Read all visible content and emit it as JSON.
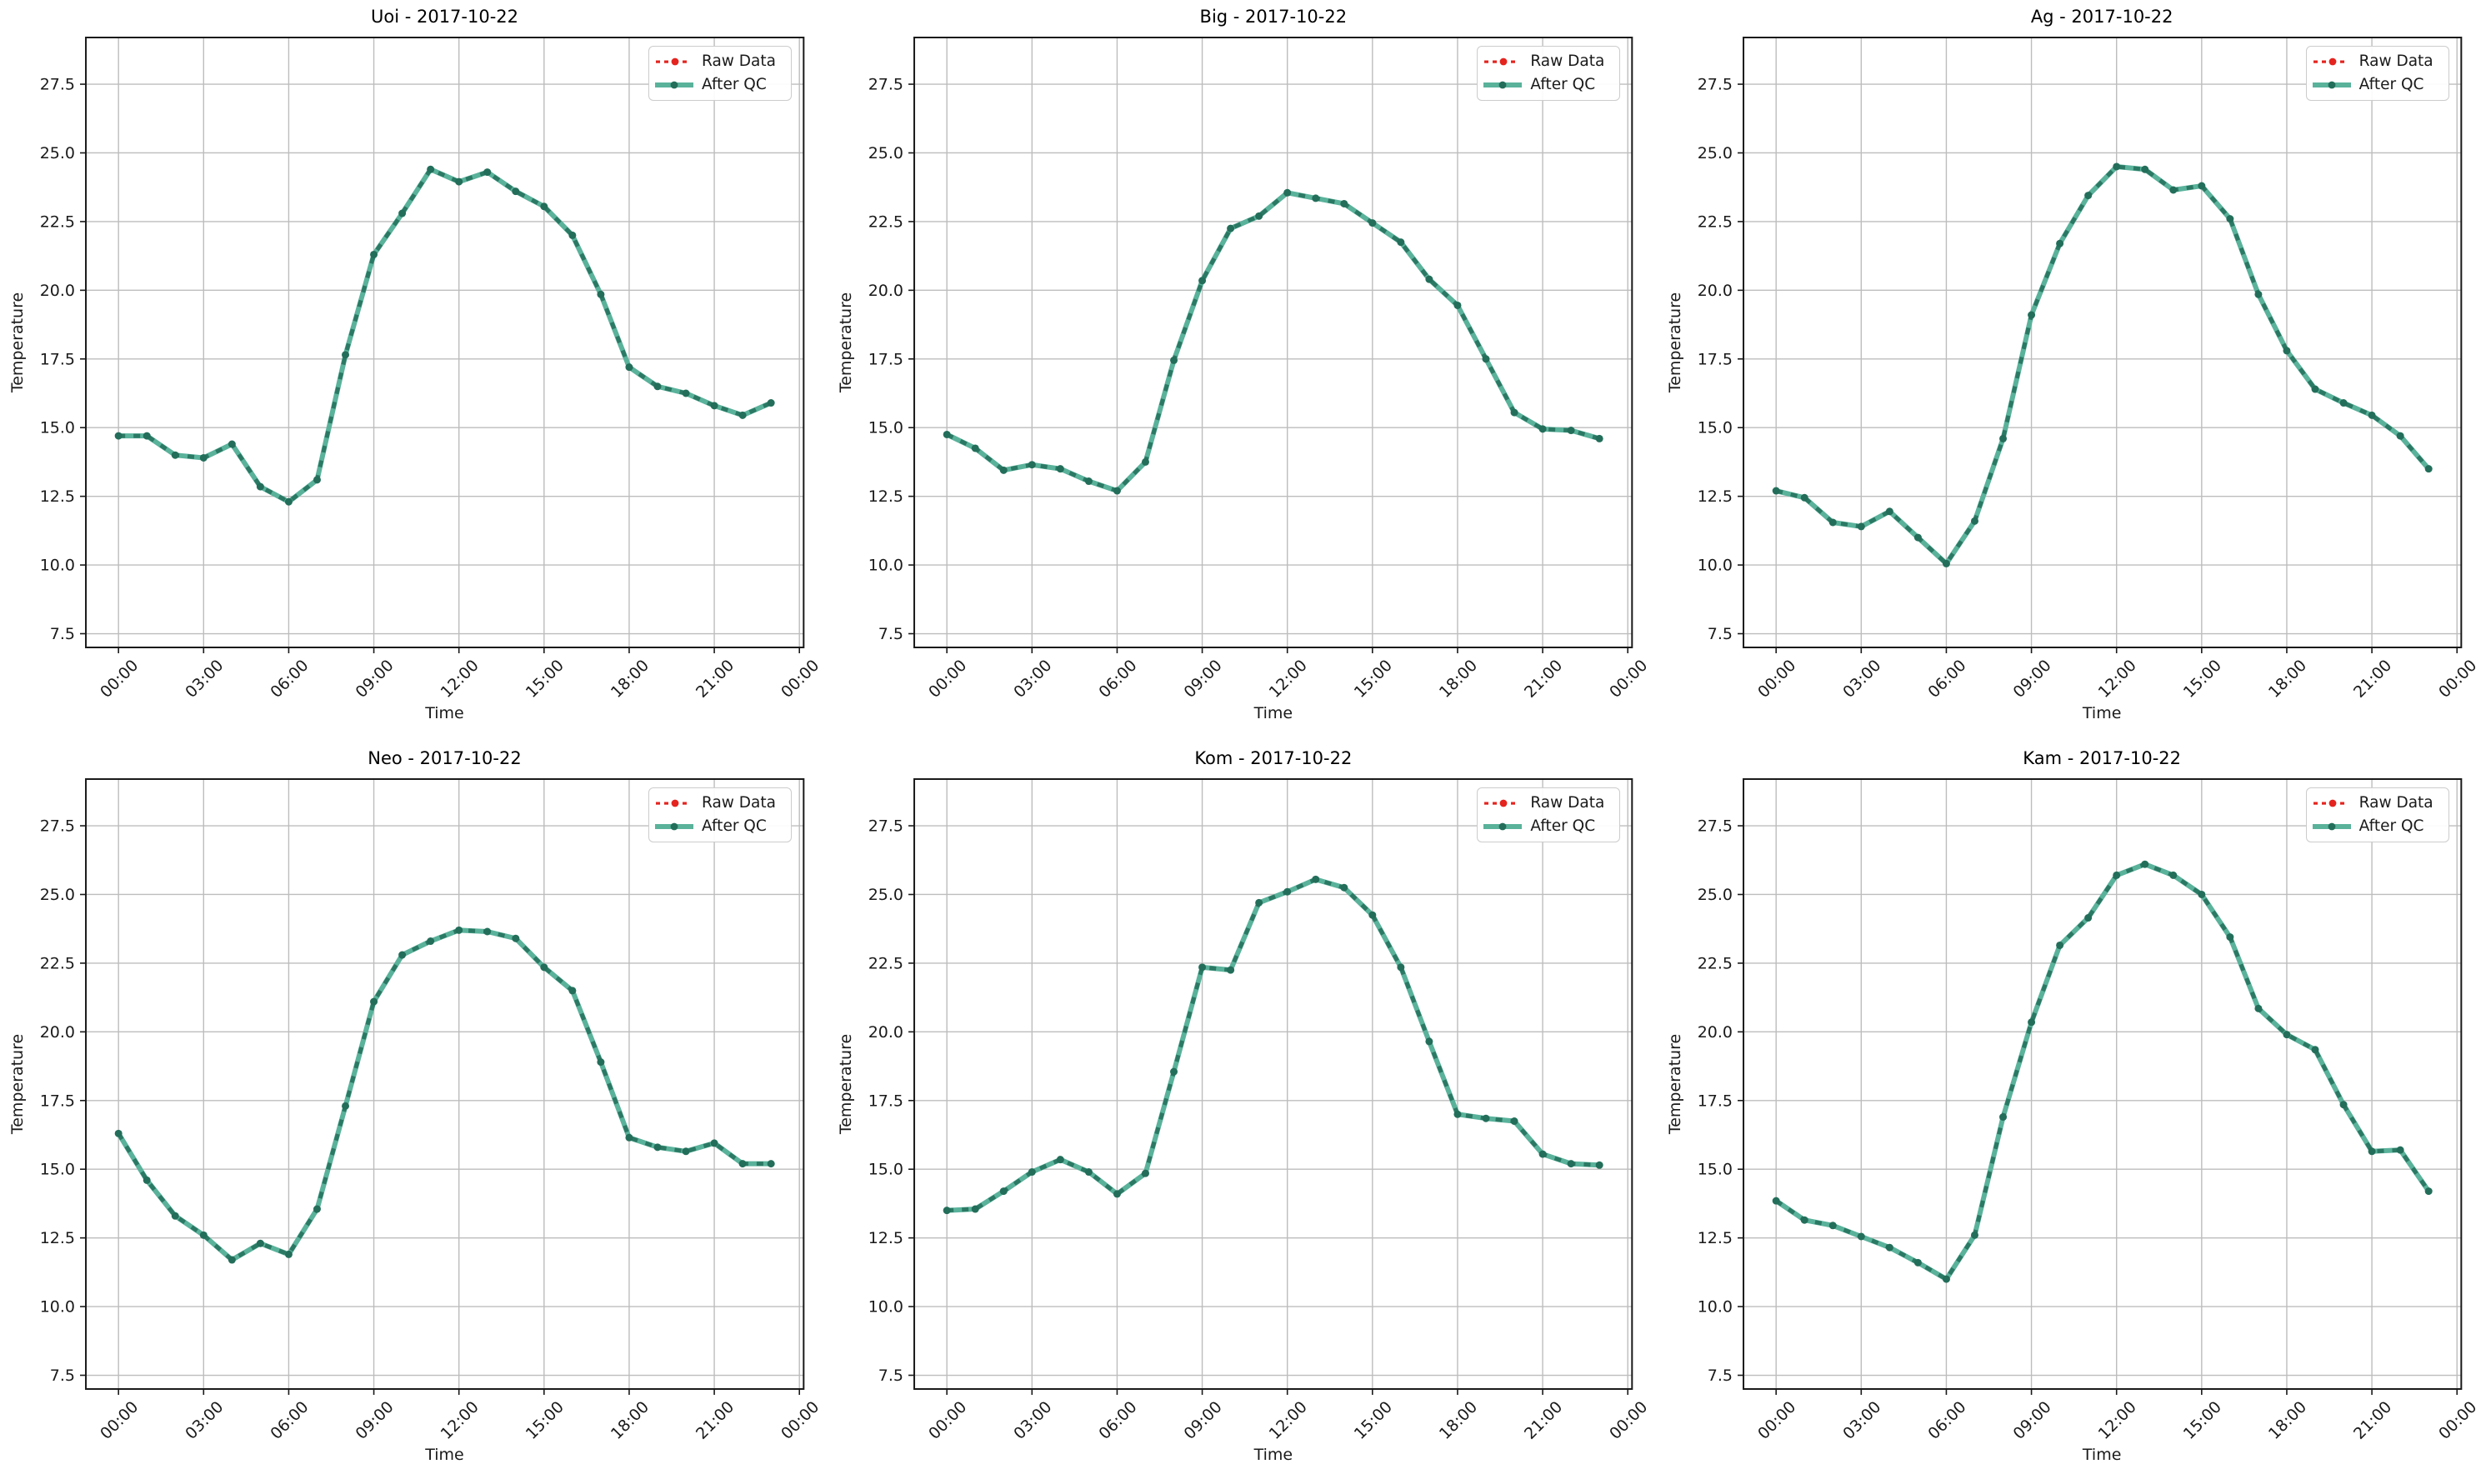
{
  "figure": {
    "background": "#ffffff",
    "date": "2017-10-22",
    "stations": [
      "Uoi",
      "Big",
      "Ag",
      "Neo",
      "Kom",
      "Kam"
    ]
  },
  "colors": {
    "raw": "#e4241f",
    "qc_line": "#5ab29b",
    "qc_marker": "#236e5a",
    "grid": "#bdbdbd",
    "axis": "#1a1a1a",
    "legend_border": "#cccccc"
  },
  "chart_data": [
    {
      "type": "line",
      "station": "Uoi",
      "title": "Uoi - 2017-10-22",
      "xlabel": "Time",
      "ylabel": "Temperature",
      "x_hours": [
        0,
        1,
        2,
        3,
        4,
        5,
        6,
        7,
        8,
        9,
        10,
        11,
        12,
        13,
        14,
        15,
        16,
        17,
        18,
        19,
        20,
        21,
        22,
        23
      ],
      "xtick_positions": [
        0,
        3,
        6,
        9,
        12,
        15,
        18,
        21,
        24
      ],
      "xtick_labels": [
        "00:00",
        "03:00",
        "06:00",
        "09:00",
        "12:00",
        "15:00",
        "18:00",
        "21:00",
        "00:00"
      ],
      "ytick_values": [
        7.5,
        10.0,
        12.5,
        15.0,
        17.5,
        20.0,
        22.5,
        25.0,
        27.5
      ],
      "xlim": [
        -1.15,
        24.15
      ],
      "ylim": [
        7.0,
        29.2
      ],
      "grid": true,
      "legend_position": "upper right",
      "series": [
        {
          "name": "Raw Data",
          "style": "dotted",
          "marker": "circle",
          "values": [
            14.7,
            14.7,
            14.0,
            13.9,
            14.4,
            12.85,
            12.3,
            13.1,
            17.65,
            21.3,
            22.8,
            24.4,
            23.95,
            24.3,
            23.6,
            23.05,
            22.0,
            19.85,
            17.2,
            16.5,
            16.25,
            15.8,
            15.45,
            15.9
          ]
        },
        {
          "name": "After QC",
          "style": "solid",
          "marker": "circle",
          "values": [
            14.7,
            14.7,
            14.0,
            13.9,
            14.4,
            12.85,
            12.3,
            13.1,
            17.65,
            21.3,
            22.8,
            24.4,
            23.95,
            24.3,
            23.6,
            23.05,
            22.0,
            19.85,
            17.2,
            16.5,
            16.25,
            15.8,
            15.45,
            15.9
          ]
        }
      ]
    },
    {
      "type": "line",
      "station": "Big",
      "title": "Big - 2017-10-22",
      "xlabel": "Time",
      "ylabel": "Temperature",
      "x_hours": [
        0,
        1,
        2,
        3,
        4,
        5,
        6,
        7,
        8,
        9,
        10,
        11,
        12,
        13,
        14,
        15,
        16,
        17,
        18,
        19,
        20,
        21,
        22,
        23
      ],
      "xtick_positions": [
        0,
        3,
        6,
        9,
        12,
        15,
        18,
        21,
        24
      ],
      "xtick_labels": [
        "00:00",
        "03:00",
        "06:00",
        "09:00",
        "12:00",
        "15:00",
        "18:00",
        "21:00",
        "00:00"
      ],
      "ytick_values": [
        7.5,
        10.0,
        12.5,
        15.0,
        17.5,
        20.0,
        22.5,
        25.0,
        27.5
      ],
      "xlim": [
        -1.15,
        24.15
      ],
      "ylim": [
        7.0,
        29.2
      ],
      "grid": true,
      "legend_position": "upper right",
      "series": [
        {
          "name": "Raw Data",
          "style": "dotted",
          "marker": "circle",
          "values": [
            14.75,
            14.25,
            13.45,
            13.65,
            13.5,
            13.05,
            12.7,
            13.75,
            17.45,
            20.35,
            22.25,
            22.7,
            23.55,
            23.35,
            23.15,
            22.45,
            21.75,
            20.4,
            19.45,
            17.5,
            15.55,
            14.95,
            14.9,
            14.6
          ]
        },
        {
          "name": "After QC",
          "style": "solid",
          "marker": "circle",
          "values": [
            14.75,
            14.25,
            13.45,
            13.65,
            13.5,
            13.05,
            12.7,
            13.75,
            17.45,
            20.35,
            22.25,
            22.7,
            23.55,
            23.35,
            23.15,
            22.45,
            21.75,
            20.4,
            19.45,
            17.5,
            15.55,
            14.95,
            14.9,
            14.6
          ]
        }
      ]
    },
    {
      "type": "line",
      "station": "Ag",
      "title": "Ag - 2017-10-22",
      "xlabel": "Time",
      "ylabel": "Temperature",
      "x_hours": [
        0,
        1,
        2,
        3,
        4,
        5,
        6,
        7,
        8,
        9,
        10,
        11,
        12,
        13,
        14,
        15,
        16,
        17,
        18,
        19,
        20,
        21,
        22,
        23
      ],
      "xtick_positions": [
        0,
        3,
        6,
        9,
        12,
        15,
        18,
        21,
        24
      ],
      "xtick_labels": [
        "00:00",
        "03:00",
        "06:00",
        "09:00",
        "12:00",
        "15:00",
        "18:00",
        "21:00",
        "00:00"
      ],
      "ytick_values": [
        7.5,
        10.0,
        12.5,
        15.0,
        17.5,
        20.0,
        22.5,
        25.0,
        27.5
      ],
      "xlim": [
        -1.15,
        24.15
      ],
      "ylim": [
        7.0,
        29.2
      ],
      "grid": true,
      "legend_position": "upper right",
      "series": [
        {
          "name": "Raw Data",
          "style": "dotted",
          "marker": "circle",
          "values": [
            12.7,
            12.45,
            11.55,
            11.4,
            11.95,
            11.0,
            10.05,
            11.6,
            14.6,
            19.1,
            21.7,
            23.45,
            24.5,
            24.4,
            23.65,
            23.8,
            22.6,
            19.85,
            17.8,
            16.4,
            15.9,
            15.45,
            14.7,
            13.5
          ]
        },
        {
          "name": "After QC",
          "style": "solid",
          "marker": "circle",
          "values": [
            12.7,
            12.45,
            11.55,
            11.4,
            11.95,
            11.0,
            10.05,
            11.6,
            14.6,
            19.1,
            21.7,
            23.45,
            24.5,
            24.4,
            23.65,
            23.8,
            22.6,
            19.85,
            17.8,
            16.4,
            15.9,
            15.45,
            14.7,
            13.5
          ]
        }
      ]
    },
    {
      "type": "line",
      "station": "Neo",
      "title": "Neo - 2017-10-22",
      "xlabel": "Time",
      "ylabel": "Temperature",
      "x_hours": [
        0,
        1,
        2,
        3,
        4,
        5,
        6,
        7,
        8,
        9,
        10,
        11,
        12,
        13,
        14,
        15,
        16,
        17,
        18,
        19,
        20,
        21,
        22,
        23
      ],
      "xtick_positions": [
        0,
        3,
        6,
        9,
        12,
        15,
        18,
        21,
        24
      ],
      "xtick_labels": [
        "00:00",
        "03:00",
        "06:00",
        "09:00",
        "12:00",
        "15:00",
        "18:00",
        "21:00",
        "00:00"
      ],
      "ytick_values": [
        7.5,
        10.0,
        12.5,
        15.0,
        17.5,
        20.0,
        22.5,
        25.0,
        27.5
      ],
      "xlim": [
        -1.15,
        24.15
      ],
      "ylim": [
        7.0,
        29.2
      ],
      "grid": true,
      "legend_position": "upper right",
      "series": [
        {
          "name": "Raw Data",
          "style": "dotted",
          "marker": "circle",
          "values": [
            16.3,
            14.6,
            13.3,
            12.6,
            11.7,
            12.3,
            11.9,
            13.55,
            17.3,
            21.1,
            22.8,
            23.3,
            23.7,
            23.65,
            23.4,
            22.35,
            21.5,
            18.9,
            16.15,
            15.8,
            15.65,
            15.95,
            15.2,
            15.2
          ]
        },
        {
          "name": "After QC",
          "style": "solid",
          "marker": "circle",
          "values": [
            16.3,
            14.6,
            13.3,
            12.6,
            11.7,
            12.3,
            11.9,
            13.55,
            17.3,
            21.1,
            22.8,
            23.3,
            23.7,
            23.65,
            23.4,
            22.35,
            21.5,
            18.9,
            16.15,
            15.8,
            15.65,
            15.95,
            15.2,
            15.2
          ]
        }
      ]
    },
    {
      "type": "line",
      "station": "Kom",
      "title": "Kom - 2017-10-22",
      "xlabel": "Time",
      "ylabel": "Temperature",
      "x_hours": [
        0,
        1,
        2,
        3,
        4,
        5,
        6,
        7,
        8,
        9,
        10,
        11,
        12,
        13,
        14,
        15,
        16,
        17,
        18,
        19,
        20,
        21,
        22,
        23
      ],
      "xtick_positions": [
        0,
        3,
        6,
        9,
        12,
        15,
        18,
        21,
        24
      ],
      "xtick_labels": [
        "00:00",
        "03:00",
        "06:00",
        "09:00",
        "12:00",
        "15:00",
        "18:00",
        "21:00",
        "00:00"
      ],
      "ytick_values": [
        7.5,
        10.0,
        12.5,
        15.0,
        17.5,
        20.0,
        22.5,
        25.0,
        27.5
      ],
      "xlim": [
        -1.15,
        24.15
      ],
      "ylim": [
        7.0,
        29.2
      ],
      "grid": true,
      "legend_position": "upper right",
      "series": [
        {
          "name": "Raw Data",
          "style": "dotted",
          "marker": "circle",
          "values": [
            13.5,
            13.55,
            14.2,
            14.9,
            15.35,
            14.9,
            14.1,
            14.85,
            18.55,
            22.35,
            22.25,
            24.7,
            25.1,
            25.55,
            25.25,
            24.25,
            22.35,
            19.65,
            17.0,
            16.85,
            16.75,
            15.55,
            15.2,
            15.15
          ]
        },
        {
          "name": "After QC",
          "style": "solid",
          "marker": "circle",
          "values": [
            13.5,
            13.55,
            14.2,
            14.9,
            15.35,
            14.9,
            14.1,
            14.85,
            18.55,
            22.35,
            22.25,
            24.7,
            25.1,
            25.55,
            25.25,
            24.25,
            22.35,
            19.65,
            17.0,
            16.85,
            16.75,
            15.55,
            15.2,
            15.15
          ]
        }
      ]
    },
    {
      "type": "line",
      "station": "Kam",
      "title": "Kam - 2017-10-22",
      "xlabel": "Time",
      "ylabel": "Temperature",
      "x_hours": [
        0,
        1,
        2,
        3,
        4,
        5,
        6,
        7,
        8,
        9,
        10,
        11,
        12,
        13,
        14,
        15,
        16,
        17,
        18,
        19,
        20,
        21,
        22,
        23
      ],
      "xtick_positions": [
        0,
        3,
        6,
        9,
        12,
        15,
        18,
        21,
        24
      ],
      "xtick_labels": [
        "00:00",
        "03:00",
        "06:00",
        "09:00",
        "12:00",
        "15:00",
        "18:00",
        "21:00",
        "00:00"
      ],
      "ytick_values": [
        7.5,
        10.0,
        12.5,
        15.0,
        17.5,
        20.0,
        22.5,
        25.0,
        27.5
      ],
      "xlim": [
        -1.15,
        24.15
      ],
      "ylim": [
        7.0,
        29.2
      ],
      "grid": true,
      "legend_position": "upper right",
      "series": [
        {
          "name": "Raw Data",
          "style": "dotted",
          "marker": "circle",
          "values": [
            13.85,
            13.15,
            12.95,
            12.55,
            12.15,
            11.6,
            11.0,
            12.6,
            16.9,
            20.35,
            23.15,
            24.15,
            25.7,
            26.1,
            25.7,
            25.0,
            23.45,
            20.85,
            19.9,
            19.35,
            17.35,
            15.65,
            15.7,
            14.2
          ]
        },
        {
          "name": "After QC",
          "style": "solid",
          "marker": "circle",
          "values": [
            13.85,
            13.15,
            12.95,
            12.55,
            12.15,
            11.6,
            11.0,
            12.6,
            16.9,
            20.35,
            23.15,
            24.15,
            25.7,
            26.1,
            25.7,
            25.0,
            23.45,
            20.85,
            19.9,
            19.35,
            17.35,
            15.65,
            15.7,
            14.2
          ]
        }
      ]
    }
  ]
}
